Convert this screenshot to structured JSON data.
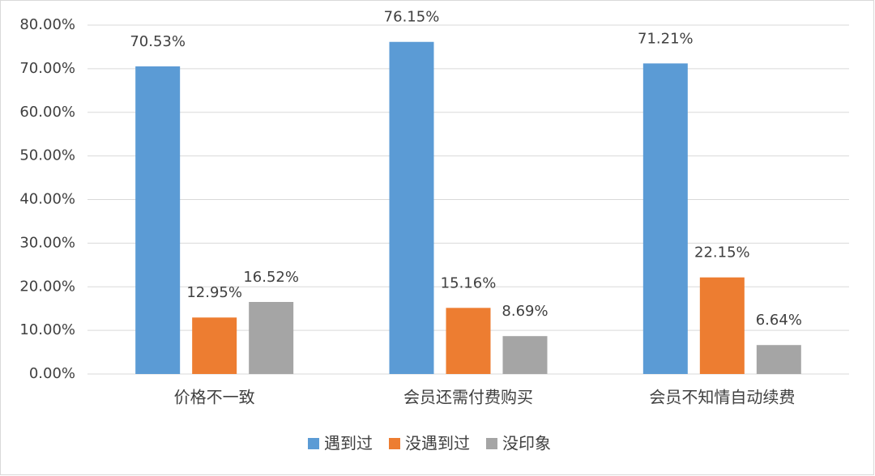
{
  "chart_data": {
    "type": "bar",
    "categories": [
      "价格不一致",
      "会员还需付费购买",
      "会员不知情自动续费"
    ],
    "series": [
      {
        "name": "遇到过",
        "color": "#5b9bd5",
        "values": [
          70.53,
          76.15,
          71.21
        ],
        "value_labels": [
          "70.53%",
          "76.15%",
          "71.21%"
        ]
      },
      {
        "name": "没遇到过",
        "color": "#ed7d31",
        "values": [
          12.95,
          15.16,
          22.15
        ],
        "value_labels": [
          "12.95%",
          "15.16%",
          "22.15%"
        ]
      },
      {
        "name": "没印象",
        "color": "#a5a5a5",
        "values": [
          16.52,
          8.69,
          6.64
        ],
        "value_labels": [
          "16.52%",
          "8.69%",
          "6.64%"
        ]
      }
    ],
    "ylim": [
      0,
      80
    ],
    "yticks": [
      {
        "value": 0,
        "label": "0.00%"
      },
      {
        "value": 10,
        "label": "10.00%"
      },
      {
        "value": 20,
        "label": "20.00%"
      },
      {
        "value": 30,
        "label": "30.00%"
      },
      {
        "value": 40,
        "label": "40.00%"
      },
      {
        "value": 50,
        "label": "50.00%"
      },
      {
        "value": 60,
        "label": "60.00%"
      },
      {
        "value": 70,
        "label": "70.00%"
      },
      {
        "value": 80,
        "label": "80.00%"
      }
    ],
    "grid": true,
    "legend": "bottom"
  }
}
